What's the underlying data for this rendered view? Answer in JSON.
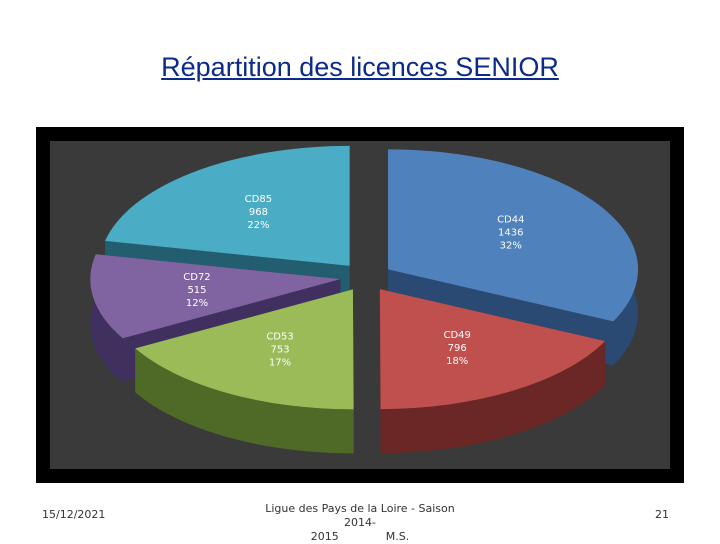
{
  "slide": {
    "title": "Répartition des licences SENIOR",
    "date": "15/12/2021",
    "footer_line1": "Ligue des Pays de la Loire - Saison 2014-",
    "footer_line2": "2015",
    "footer_author": "M.S.",
    "page_number": "21"
  },
  "chart_data": {
    "type": "pie",
    "title": "",
    "three_d": true,
    "exploded": true,
    "slices": [
      {
        "label": "CD44",
        "value": 1436,
        "percent": "32%",
        "color": "#4f81bd",
        "side": "#2a4a73"
      },
      {
        "label": "CD49",
        "value": 796,
        "percent": "18%",
        "color": "#c0504d",
        "side": "#6b2725"
      },
      {
        "label": "CD53",
        "value": 753,
        "percent": "17%",
        "color": "#9bbb59",
        "side": "#4f6a26"
      },
      {
        "label": "CD72",
        "value": 515,
        "percent": "12%",
        "color": "#8064a2",
        "side": "#3f3060"
      },
      {
        "label": "CD85",
        "value": 968,
        "percent": "22%",
        "color": "#4bacc6",
        "side": "#225e6f"
      }
    ]
  }
}
